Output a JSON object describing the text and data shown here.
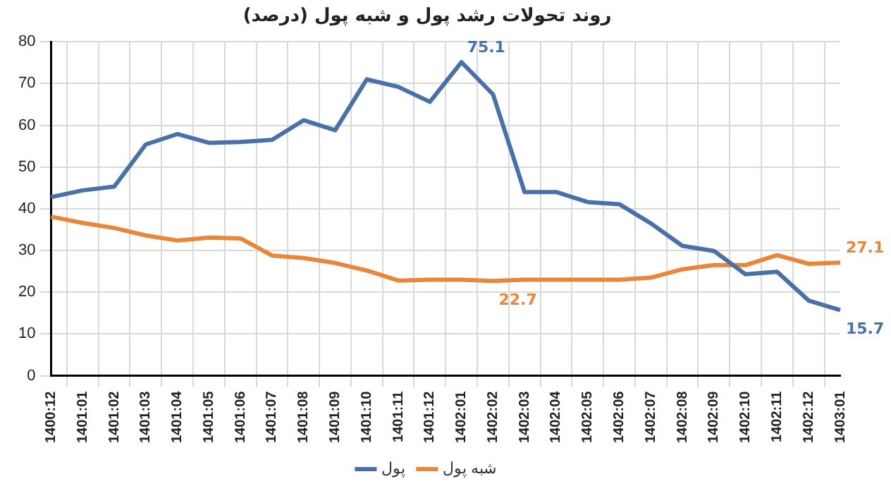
{
  "chart_data": {
    "type": "line",
    "title": "روند تحولات رشد پول و شبه پول (درصد)",
    "categories": [
      "1400:12",
      "1401:01",
      "1401:02",
      "1401:03",
      "1401:04",
      "1401:05",
      "1401:06",
      "1401:07",
      "1401:08",
      "1401:09",
      "1401:10",
      "1401:11",
      "1401:12",
      "1402:01",
      "1402:02",
      "1402:03",
      "1402:04",
      "1402:05",
      "1402:06",
      "1402:07",
      "1402:08",
      "1402:09",
      "1402:10",
      "1402:11",
      "1402:12",
      "1403:01"
    ],
    "series": [
      {
        "name": "پول",
        "color": "#4a70a8",
        "values": [
          42.8,
          44.4,
          45.3,
          55.4,
          57.9,
          55.8,
          56,
          56.5,
          61.2,
          58.8,
          71,
          69.2,
          65.6,
          75.1,
          67.4,
          44,
          44,
          41.6,
          41.1,
          36.5,
          31.1,
          29.9,
          24.3,
          24.9,
          18,
          15.7
        ],
        "value_labels": [
          null,
          null,
          null,
          null,
          null,
          null,
          null,
          null,
          null,
          null,
          null,
          null,
          null,
          "75.1",
          null,
          null,
          null,
          null,
          null,
          null,
          null,
          null,
          null,
          null,
          null,
          "15.7"
        ]
      },
      {
        "name": "شبه پول",
        "color": "#e8873a",
        "values": [
          38.1,
          36.6,
          35.4,
          33.6,
          32.4,
          33.1,
          32.9,
          28.8,
          28.2,
          27,
          25.2,
          22.8,
          23,
          23,
          22.7,
          23,
          23,
          23,
          23,
          23.5,
          25.5,
          26.5,
          26.5,
          28.9,
          26.8,
          27.1
        ],
        "value_labels": [
          null,
          null,
          null,
          null,
          null,
          null,
          null,
          null,
          null,
          null,
          null,
          null,
          null,
          null,
          "22.7",
          null,
          null,
          null,
          null,
          null,
          null,
          null,
          null,
          null,
          null,
          "27.1"
        ]
      }
    ],
    "ylim": [
      0,
      80
    ],
    "yticks": [
      0,
      10,
      20,
      30,
      40,
      50,
      60,
      70,
      80
    ],
    "grid": true,
    "legend": "bottom",
    "marker": "none",
    "line_style": "solid"
  }
}
